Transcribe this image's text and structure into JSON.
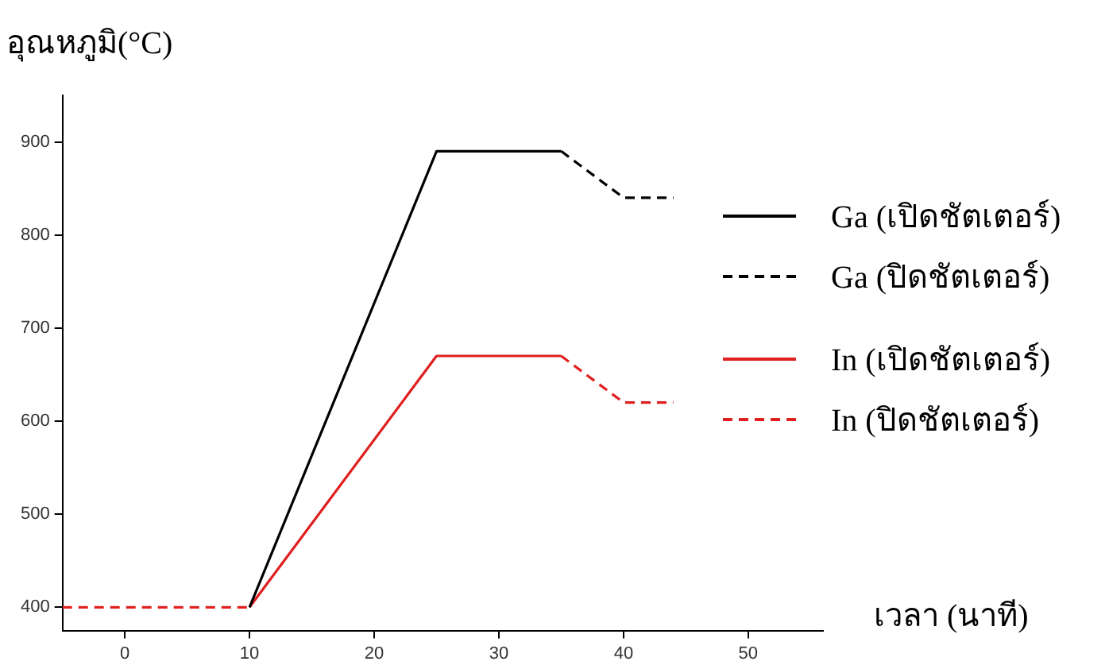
{
  "chart_data": {
    "type": "line",
    "ylabel": "อุณหภูมิ(°C)",
    "xlabel": "เวลา (นาที)",
    "xlim": [
      -5,
      56
    ],
    "xticks": [
      0,
      10,
      20,
      30,
      40,
      50
    ],
    "ylim": [
      375,
      950
    ],
    "yticks": [
      400,
      500,
      600,
      700,
      800,
      900
    ],
    "grid": false,
    "legend": "right",
    "marker": "none",
    "series": [
      {
        "name": "Ga (เปิดชัตเตอร์)",
        "color": "#000000",
        "line_style": "solid",
        "x": [
          10,
          25,
          35
        ],
        "values": [
          400,
          890,
          890
        ]
      },
      {
        "name": "Ga (ปิดชัตเตอร์)",
        "color": "#000000",
        "line_style": "dashed",
        "x": [
          35,
          40,
          44
        ],
        "values": [
          890,
          840,
          840
        ]
      },
      {
        "name": "In (เปิดชัตเตอร์)",
        "color": "#e02020",
        "line_style": "solid",
        "x": [
          10,
          25,
          35
        ],
        "values": [
          400,
          670,
          670
        ]
      },
      {
        "name": "In (ปิดชัตเตอร์)",
        "color": "#e02020",
        "line_style": "dashed",
        "x": [
          -5,
          10,
          25,
          35,
          40,
          44
        ],
        "values": [
          400,
          400,
          null,
          670,
          620,
          620
        ]
      }
    ]
  }
}
